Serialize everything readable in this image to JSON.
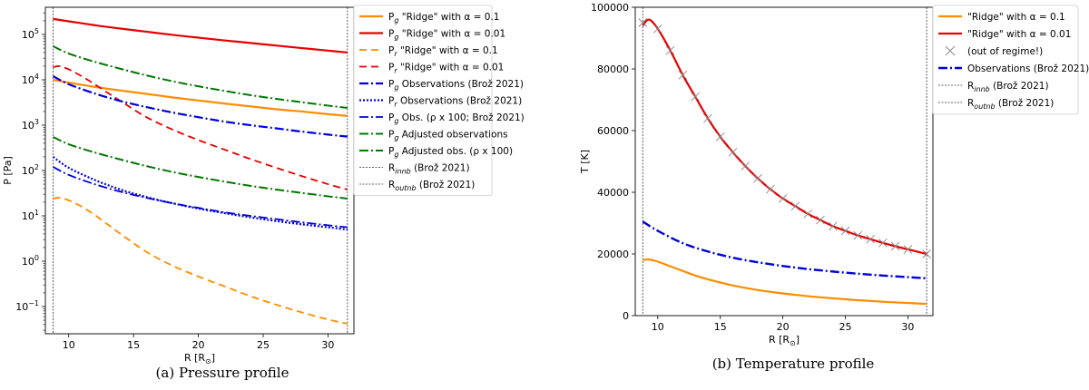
{
  "chart_data": [
    {
      "type": "line",
      "caption": "(a) Pressure profile",
      "xlabel": "R [R",
      "xlabel_sub": "⊙",
      "xlabel_end": "]",
      "ylabel": "P [Pa]",
      "yscale": "log",
      "xlim": [
        8.2,
        32
      ],
      "ylim_exp": [
        -1.6,
        5.6
      ],
      "xticks": [
        10,
        15,
        20,
        25,
        30
      ],
      "yticks_exp": [
        -1,
        0,
        1,
        2,
        3,
        4,
        5
      ],
      "vlines": [
        8.8,
        31.5
      ],
      "series": [
        {
          "name": "P_g \"Ridge\" with α = 0.1",
          "leg": [
            "P",
            "g",
            " \"Ridge\" with α = 0.1"
          ],
          "color": "#ff8c00",
          "dash": "",
          "width": 2.2,
          "x": [
            8.8,
            10,
            12,
            14,
            16,
            18,
            20,
            22,
            24,
            26,
            28,
            30,
            31.5
          ],
          "y": [
            10000,
            8700,
            7000,
            5800,
            4900,
            4100,
            3500,
            3000,
            2600,
            2250,
            2000,
            1750,
            1600
          ]
        },
        {
          "name": "P_g \"Ridge\" with α = 0.01",
          "leg": [
            "P",
            "g",
            " \"Ridge\" with α = 0.01"
          ],
          "color": "#e60000",
          "dash": "",
          "width": 2.2,
          "x": [
            8.8,
            10,
            12,
            14,
            16,
            18,
            20,
            22,
            24,
            26,
            28,
            30,
            31.5
          ],
          "y": [
            220000,
            195000,
            160000,
            135000,
            115000,
            98000,
            85000,
            74000,
            65000,
            57000,
            50000,
            44000,
            40000
          ]
        },
        {
          "name": "P_r \"Ridge\" with α = 0.1",
          "leg": [
            "P",
            "r",
            " \"Ridge\" with α = 0.1"
          ],
          "color": "#ff8c00",
          "dash": "8,5",
          "width": 1.8,
          "x": [
            8.8,
            9.3,
            10,
            11,
            12,
            13,
            14,
            16,
            18,
            20,
            22,
            24,
            26,
            28,
            30,
            31.5
          ],
          "y": [
            24,
            25,
            22,
            16,
            10.5,
            6.5,
            4.0,
            1.6,
            0.8,
            0.46,
            0.28,
            0.17,
            0.11,
            0.074,
            0.052,
            0.042
          ]
        },
        {
          "name": "P_r \"Ridge\" with α = 0.01",
          "leg": [
            "P",
            "r",
            " \"Ridge\" with α = 0.01"
          ],
          "color": "#e60000",
          "dash": "8,5",
          "width": 1.8,
          "x": [
            8.8,
            9.3,
            10,
            11,
            12,
            13,
            14,
            16,
            18,
            20,
            22,
            24,
            26,
            28,
            30,
            31.5
          ],
          "y": [
            19000,
            20000,
            17000,
            12000,
            8000,
            5200,
            3400,
            1500,
            800,
            470,
            290,
            180,
            115,
            75,
            50,
            38
          ]
        },
        {
          "name": "P_g Observations (Brož 2021)",
          "leg": [
            "P",
            "g",
            " Observations (Brož 2021)"
          ],
          "color": "#0000dd",
          "dash": "10,3,2,3",
          "width": 2.2,
          "x": [
            8.8,
            10,
            12,
            14,
            16,
            18,
            20,
            22,
            24,
            26,
            28,
            30,
            31.5
          ],
          "y": [
            12000,
            8000,
            5000,
            3400,
            2500,
            1900,
            1500,
            1200,
            1000,
            850,
            720,
            620,
            560
          ]
        },
        {
          "name": "P_r Observations (Brož 2021)",
          "leg": [
            "P",
            "r",
            " Observations (Brož 2021)"
          ],
          "color": "#0000dd",
          "dash": "2,2",
          "width": 2.2,
          "x": [
            8.8,
            10,
            12,
            14,
            16,
            18,
            20,
            22,
            24,
            26,
            28,
            30,
            31.5
          ],
          "y": [
            200,
            115,
            62,
            38,
            26,
            19,
            14.5,
            11.5,
            9.3,
            7.7,
            6.5,
            5.6,
            5.0
          ]
        },
        {
          "name": "P_g Obs. (ρ x 100; Brož 2021)",
          "leg": [
            "P",
            "g",
            " Obs. (ρ x 100; Brož 2021)"
          ],
          "color": "#0000dd",
          "dash": "10,3,2,3",
          "width": 1.8,
          "x": [
            8.8,
            10,
            12,
            14,
            16,
            18,
            20,
            22,
            24,
            26,
            28,
            30,
            31.5
          ],
          "y": [
            120,
            80,
            50,
            34,
            25,
            19,
            15,
            12,
            10,
            8.5,
            7.2,
            6.2,
            5.6
          ]
        },
        {
          "name": "P_g Adjusted observations",
          "leg": [
            "P",
            "g",
            " Adjusted observations"
          ],
          "color": "#007700",
          "dash": "10,3,2,3",
          "width": 2.0,
          "x": [
            8.8,
            10,
            12,
            14,
            16,
            18,
            20,
            22,
            24,
            26,
            28,
            30,
            31.5
          ],
          "y": [
            55000,
            38000,
            25000,
            17500,
            12500,
            9300,
            7200,
            5700,
            4600,
            3800,
            3200,
            2700,
            2400
          ]
        },
        {
          "name": "P_g Adjusted obs. (ρ x 100)",
          "leg": [
            "P",
            "g",
            " Adjusted obs. (ρ x 100)"
          ],
          "color": "#007700",
          "dash": "10,3,2,3",
          "width": 2.0,
          "x": [
            8.8,
            10,
            12,
            14,
            16,
            18,
            20,
            22,
            24,
            26,
            28,
            30,
            31.5
          ],
          "y": [
            550,
            380,
            250,
            175,
            125,
            93,
            72,
            57,
            46,
            38,
            32,
            27,
            24
          ]
        }
      ],
      "legend_vlines": [
        {
          "name": "R_innb (Brož 2021)",
          "leg": [
            "R",
            "innb",
            " (Brož 2021)"
          ]
        },
        {
          "name": "R_outnb (Brož 2021)",
          "leg": [
            "R",
            "outnb",
            " (Brož 2021)"
          ]
        }
      ]
    },
    {
      "type": "line",
      "caption": "(b) Temperature profile",
      "xlabel": "R [R",
      "xlabel_sub": "⊙",
      "xlabel_end": "]",
      "ylabel": "T [K]",
      "yscale": "linear",
      "xlim": [
        8.2,
        32
      ],
      "ylim": [
        0,
        100000
      ],
      "xticks": [
        10,
        15,
        20,
        25,
        30
      ],
      "yticks": [
        0,
        20000,
        40000,
        60000,
        80000,
        100000
      ],
      "vlines": [
        8.8,
        31.5
      ],
      "series": [
        {
          "name": "\"Ridge\" with α = 0.1",
          "color": "#ff8c00",
          "dash": "",
          "width": 2.2,
          "x": [
            8.8,
            9.3,
            10,
            11,
            12,
            13,
            14,
            16,
            18,
            20,
            22,
            24,
            26,
            28,
            30,
            31.5
          ],
          "y": [
            18000,
            18200,
            17500,
            16000,
            14500,
            13000,
            11800,
            9800,
            8300,
            7200,
            6300,
            5600,
            5000,
            4500,
            4100,
            3800
          ]
        },
        {
          "name": "\"Ridge\" with α = 0.01",
          "color": "#e60000",
          "dash": "",
          "width": 2.2,
          "x": [
            8.8,
            9.3,
            10,
            11,
            12,
            13,
            14,
            15,
            16,
            17,
            18,
            19,
            20,
            21,
            22,
            23,
            24,
            25,
            26,
            27,
            28,
            29,
            30,
            31,
            31.5
          ],
          "y": [
            94000,
            96000,
            93000,
            86000,
            78000,
            71000,
            64000,
            58000,
            53000,
            48500,
            44500,
            41000,
            38000,
            35500,
            33000,
            31000,
            29000,
            27500,
            26000,
            24800,
            23600,
            22500,
            21500,
            20500,
            20000
          ]
        },
        {
          "name": "(out of regime!)",
          "color": "#888888",
          "marker": "x",
          "dash": "",
          "width": 0,
          "x": [
            8.8,
            10,
            11,
            12,
            13,
            14,
            15,
            16,
            17,
            18,
            19,
            20,
            21,
            22,
            23,
            24,
            25,
            26,
            27,
            28,
            29,
            30,
            31.5
          ],
          "y": [
            95000,
            93000,
            86000,
            78000,
            71000,
            64000,
            58000,
            53000,
            48500,
            44500,
            41000,
            38000,
            35500,
            33000,
            31000,
            29000,
            27500,
            26000,
            24800,
            23600,
            22500,
            21500,
            20000
          ]
        },
        {
          "name": "Observations (Brož 2021)",
          "color": "#0000dd",
          "dash": "10,3,2,3",
          "width": 2.4,
          "x": [
            8.8,
            10,
            12,
            14,
            16,
            18,
            20,
            22,
            24,
            26,
            28,
            30,
            31.5
          ],
          "y": [
            30500,
            27500,
            23500,
            20800,
            18800,
            17300,
            16100,
            15100,
            14300,
            13600,
            13000,
            12500,
            12100
          ]
        }
      ],
      "legend_vlines": [
        {
          "name": "R_innb (Brož 2021)",
          "leg": [
            "R",
            "innb",
            " (Brož 2021)"
          ]
        },
        {
          "name": "R_outnb (Brož 2021)",
          "leg": [
            "R",
            "outnb",
            " (Brož 2021)"
          ]
        }
      ]
    }
  ]
}
